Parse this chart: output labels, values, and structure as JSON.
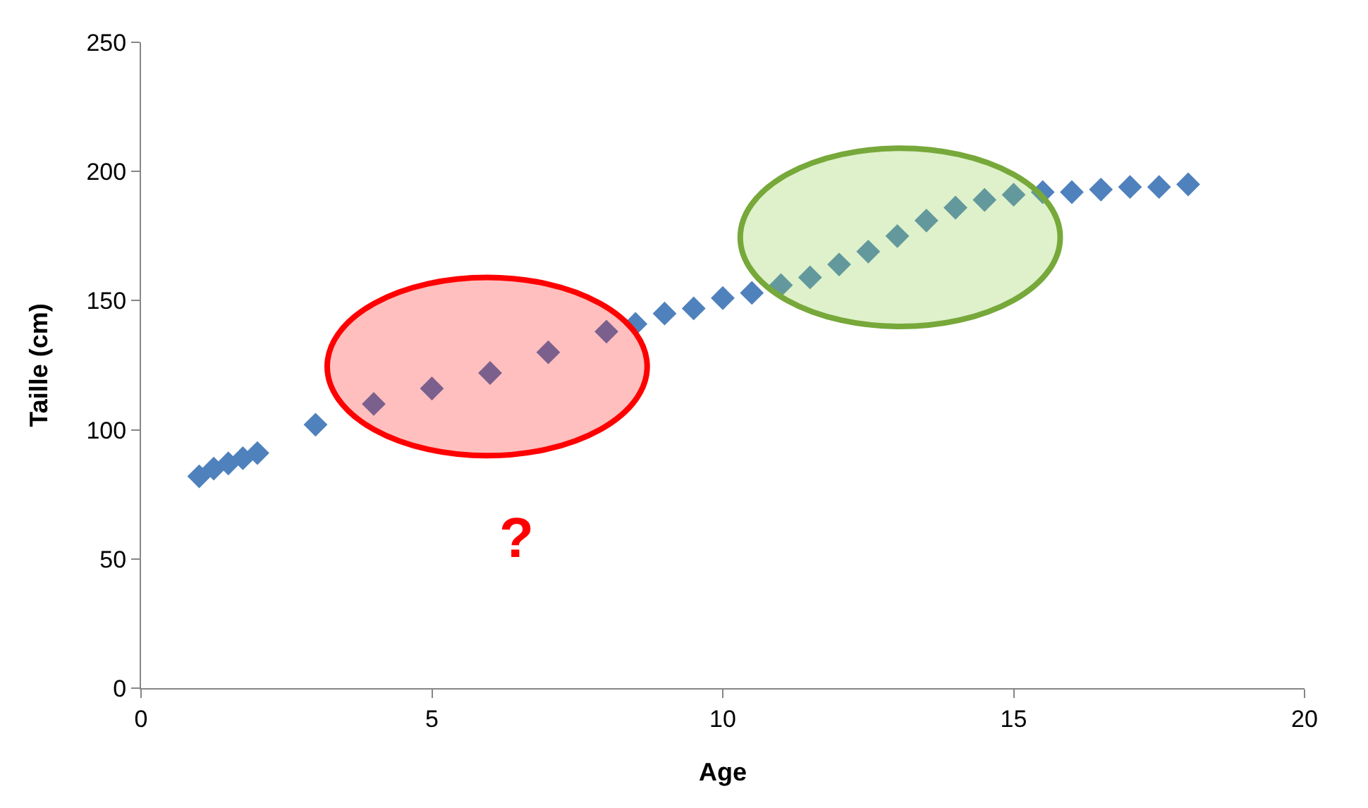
{
  "chart_data": {
    "type": "scatter",
    "xlabel": "Age",
    "ylabel": "Taille (cm)",
    "x": [
      1,
      1.25,
      1.5,
      1.75,
      2,
      3,
      4,
      5,
      6,
      7,
      8,
      8.5,
      9,
      9.5,
      10,
      10.5,
      11,
      11.5,
      12,
      12.5,
      13,
      13.5,
      14,
      14.5,
      15,
      15.5,
      16,
      16.5,
      17,
      17.5,
      18
    ],
    "series": [
      {
        "color": "#4f81bd",
        "values": [
          82,
          85,
          87,
          89,
          91,
          102,
          110,
          116,
          122,
          130,
          138,
          141,
          145,
          147,
          151,
          153,
          156,
          159,
          164,
          169,
          175,
          181,
          186,
          189,
          191,
          192,
          192,
          193,
          194,
          194,
          195
        ]
      }
    ],
    "xlim": [
      0,
      20
    ],
    "xticks": [
      0,
      5,
      10,
      15,
      20
    ],
    "ylim": [
      0,
      250
    ],
    "yticks": [
      0,
      50,
      100,
      150,
      200,
      250
    ],
    "marker": "diamond",
    "annotations": [
      "?"
    ]
  }
}
